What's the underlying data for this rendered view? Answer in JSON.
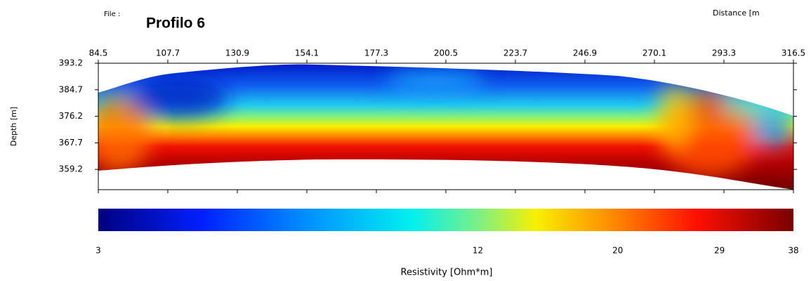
{
  "chart_data": {
    "type": "section",
    "file_label": "File :",
    "title": "Profilo 6",
    "x_label": "Distance [m",
    "y_label": "Depth [m]",
    "xlim": [
      84.5,
      316.5
    ],
    "xticks": [
      84.5,
      107.7,
      130.9,
      154.1,
      177.3,
      200.5,
      223.7,
      246.9,
      270.1,
      293.3,
      316.5
    ],
    "ylim": [
      352.7,
      393.2
    ],
    "yticks": [
      393.2,
      384.7,
      376.2,
      367.7,
      359.2
    ],
    "colorbar": {
      "label": "Resistivity [Ohm*m]",
      "lim": [
        3,
        38
      ],
      "ticks": [
        3,
        12,
        20,
        29,
        38
      ],
      "log": true
    }
  }
}
